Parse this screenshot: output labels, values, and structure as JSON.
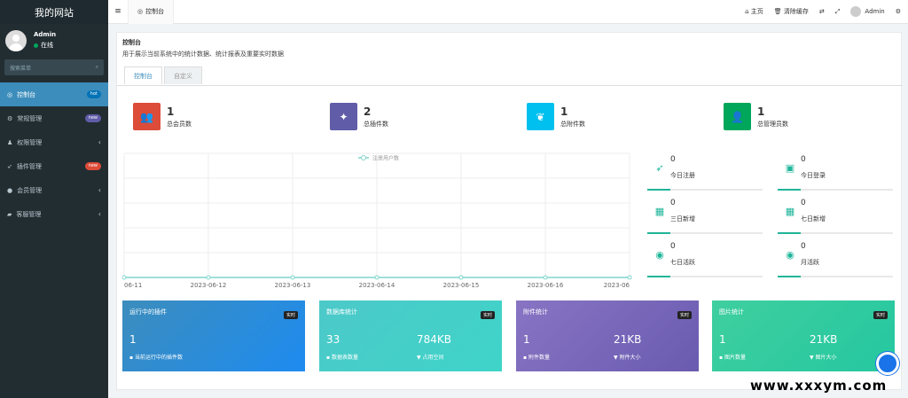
{
  "site_name": "我的网站",
  "user": {
    "name": "Admin",
    "status": "在线"
  },
  "sidebar_search": "搜索菜单",
  "nav": [
    {
      "label": "控制台",
      "badge": "hot",
      "active": true,
      "icon": "dashboard-icon",
      "glyph": "◎"
    },
    {
      "label": "常规管理",
      "badge": "new",
      "icon": "cogs-icon",
      "glyph": "⚙"
    },
    {
      "label": "权限管理",
      "chev": "‹",
      "icon": "group-icon",
      "glyph": "♟"
    },
    {
      "label": "插件管理",
      "badge": "new",
      "icon": "rocket-icon",
      "glyph": "➶"
    },
    {
      "label": "会员管理",
      "chev": "‹",
      "icon": "user-circle-icon",
      "glyph": "●"
    },
    {
      "label": "客服管理",
      "chev": "‹",
      "icon": "comment-icon",
      "glyph": "▰"
    }
  ],
  "topbar": {
    "tab": "控制台",
    "home": "主页",
    "clear_cache": "清除缓存",
    "admin": "Admin"
  },
  "page": {
    "title": "控制台",
    "subtitle": "用于展示当前系统中的统计数据、统计报表及重要实时数据"
  },
  "tabs": [
    "控制台",
    "自定义"
  ],
  "stats": [
    {
      "value": "1",
      "label": "总会员数",
      "color": "#dd4b39",
      "icon": "users-icon"
    },
    {
      "value": "2",
      "label": "总插件数",
      "color": "#605ca8",
      "icon": "magic-wand-icon"
    },
    {
      "value": "1",
      "label": "总附件数",
      "color": "#00c0ef",
      "icon": "leaf-icon"
    },
    {
      "value": "1",
      "label": "总管理员数",
      "color": "#00a65a",
      "icon": "user-icon"
    }
  ],
  "chart_data": {
    "type": "line",
    "legend": "注册用户数",
    "categories": [
      "06-11",
      "2023-06-12",
      "2023-06-13",
      "2023-06-14",
      "2023-06-15",
      "2023-06-16",
      "2023-06"
    ],
    "series": [
      {
        "name": "注册用户数",
        "values": [
          0,
          0,
          0,
          0,
          0,
          0,
          0
        ]
      }
    ],
    "color": "#7fd6cc"
  },
  "mini_stats": [
    {
      "value": "0",
      "label": "今日注册",
      "icon": "rocket-icon"
    },
    {
      "value": "0",
      "label": "今日登录",
      "icon": "vcard-icon"
    },
    {
      "value": "0",
      "label": "三日新增",
      "icon": "calendar-icon"
    },
    {
      "value": "0",
      "label": "七日新增",
      "icon": "calendar-plus-icon"
    },
    {
      "value": "0",
      "label": "七日活跃",
      "icon": "user-circle-icon"
    },
    {
      "value": "0",
      "label": "月活跃",
      "icon": "user-circle-icon"
    }
  ],
  "cards": [
    {
      "title": "运行中的插件",
      "tag": "实时",
      "a_val": "1",
      "a_lbl": "当前运行中的插件数",
      "b_val": "",
      "b_lbl": "",
      "c1": "#3c8dbc",
      "c2": "#1e8bf0"
    },
    {
      "title": "数据库统计",
      "tag": "实时",
      "a_val": "33",
      "a_lbl": "数据表数量",
      "b_val": "784KB",
      "b_lbl": "占用空间",
      "c1": "#4cc9c9",
      "c2": "#3fd4c9"
    },
    {
      "title": "附件统计",
      "tag": "实时",
      "a_val": "1",
      "a_lbl": "附件数量",
      "b_val": "21KB",
      "b_lbl": "附件大小",
      "c1": "#8874c3",
      "c2": "#6a5bb0"
    },
    {
      "title": "图片统计",
      "tag": "实时",
      "a_val": "1",
      "a_lbl": "图片数量",
      "b_val": "21KB",
      "b_lbl": "图片大小",
      "c1": "#3fcf9f",
      "c2": "#25c7a0"
    }
  ],
  "watermark": "www.xxxym.com"
}
